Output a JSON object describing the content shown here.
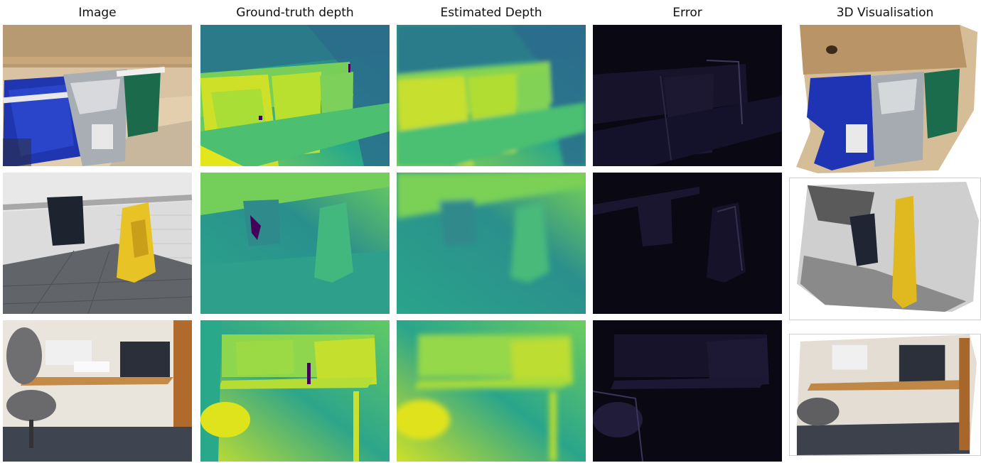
{
  "columns": [
    {
      "title": "Image"
    },
    {
      "title": "Ground-truth depth"
    },
    {
      "title": "Estimated Depth"
    },
    {
      "title": "Error"
    },
    {
      "title": "3D Visualisation"
    }
  ],
  "rows": [
    {
      "scene": "recycling-bins-on-counter"
    },
    {
      "scene": "wet-floor-sign-corner"
    },
    {
      "scene": "office-printers-desk"
    }
  ],
  "colors": {
    "depth_near": "#e2e51a",
    "depth_mid": "#2ca88a",
    "depth_far": "#2b6b8c",
    "error_bg": "#0a0812",
    "invalid": "#44015a"
  }
}
